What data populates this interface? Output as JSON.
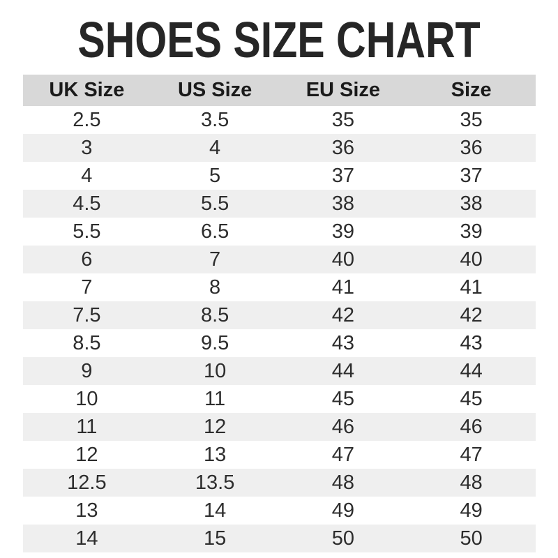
{
  "title": "SHOES SIZE CHART",
  "chart_data": {
    "type": "table",
    "title": "SHOES SIZE CHART",
    "columns": [
      "UK Size",
      "US Size",
      "EU Size",
      "Size"
    ],
    "rows": [
      [
        "2.5",
        "3.5",
        "35",
        "35"
      ],
      [
        "3",
        "4",
        "36",
        "36"
      ],
      [
        "4",
        "5",
        "37",
        "37"
      ],
      [
        "4.5",
        "5.5",
        "38",
        "38"
      ],
      [
        "5.5",
        "6.5",
        "39",
        "39"
      ],
      [
        "6",
        "7",
        "40",
        "40"
      ],
      [
        "7",
        "8",
        "41",
        "41"
      ],
      [
        "7.5",
        "8.5",
        "42",
        "42"
      ],
      [
        "8.5",
        "9.5",
        "43",
        "43"
      ],
      [
        "9",
        "10",
        "44",
        "44"
      ],
      [
        "10",
        "11",
        "45",
        "45"
      ],
      [
        "11",
        "12",
        "46",
        "46"
      ],
      [
        "12",
        "13",
        "47",
        "47"
      ],
      [
        "12.5",
        "13.5",
        "48",
        "48"
      ],
      [
        "13",
        "14",
        "49",
        "49"
      ],
      [
        "14",
        "15",
        "50",
        "50"
      ]
    ],
    "layout": {
      "header_row": true,
      "striped": true,
      "stripe_pattern": "even-rows-gray",
      "text_align": "center"
    }
  },
  "colors": {
    "header_bg": "#d8d8d8",
    "stripe_bg": "#efefef",
    "title_text": "#262626",
    "cell_text": "#2d2d2d"
  }
}
